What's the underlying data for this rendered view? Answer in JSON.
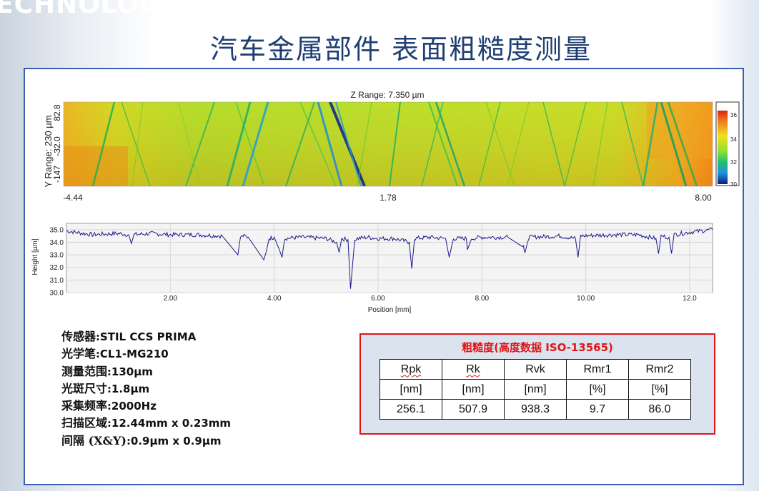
{
  "slide": {
    "brand_word": "ECHNOLOGY",
    "title": "汽车金属部件 表面粗糙度测量"
  },
  "surface_map": {
    "z_range_label": "Z Range: 7.350 µm",
    "y_axis_label": "Y Range: 230 µm",
    "y_ticks": [
      "82.8",
      "-32.0",
      "-147"
    ],
    "x_ticks": [
      "-4.44",
      "1.78",
      "8.00"
    ],
    "colorbar_ticks": [
      "36",
      "34",
      "32",
      "30"
    ],
    "colormap": [
      "#0b1f8f",
      "#1f8de0",
      "#20c060",
      "#a8e020",
      "#f0e020",
      "#f09020",
      "#e03010"
    ]
  },
  "profile_chart": {
    "ylabel": "Height [µm]",
    "xlabel": "Position [mm]",
    "line_color": "#1a1a8a"
  },
  "chart_data": {
    "type": "line",
    "title": "",
    "xlabel": "Position [mm]",
    "ylabel": "Height [µm]",
    "xlim": [
      0,
      12.44
    ],
    "ylim": [
      30.0,
      35.5
    ],
    "x_ticks": [
      "2.00",
      "4.00",
      "6.00",
      "8.00",
      "10.00",
      "12.0"
    ],
    "y_ticks": [
      "35.0",
      "34.0",
      "33.0",
      "32.0",
      "31.0",
      "30.0"
    ],
    "grid": true,
    "series": [
      {
        "x": [
          0.0,
          0.5,
          1.0,
          1.2,
          1.25,
          1.3,
          1.6,
          2.0,
          2.5,
          3.0,
          3.3,
          3.35,
          3.4,
          3.5,
          3.8,
          3.85,
          3.9,
          4.0,
          4.1,
          4.15,
          4.2,
          4.5,
          5.0,
          5.2,
          5.25,
          5.3,
          5.42,
          5.47,
          5.5,
          5.55,
          5.6,
          5.8,
          6.0,
          6.3,
          6.6,
          6.65,
          6.7,
          7.0,
          7.3,
          7.37,
          7.45,
          7.7,
          7.72,
          7.8,
          8.0,
          8.5,
          8.8,
          8.83,
          8.9,
          9.5,
          9.8,
          9.85,
          9.9,
          10.5,
          11.0,
          11.35,
          11.4,
          11.45,
          11.6,
          11.65,
          11.7,
          12.0,
          12.44
        ],
        "y": [
          34.9,
          34.6,
          34.7,
          34.6,
          33.9,
          34.6,
          34.7,
          34.6,
          34.6,
          34.5,
          33.0,
          34.4,
          34.5,
          34.4,
          32.6,
          33.3,
          34.3,
          34.4,
          33.4,
          32.8,
          34.3,
          34.4,
          34.3,
          34.0,
          33.2,
          34.3,
          34.2,
          30.3,
          31.8,
          34.2,
          34.3,
          34.4,
          34.3,
          34.3,
          34.0,
          31.9,
          34.3,
          34.4,
          34.3,
          32.8,
          34.3,
          34.3,
          33.4,
          34.3,
          34.4,
          34.4,
          33.6,
          33.2,
          34.4,
          34.5,
          34.3,
          32.8,
          34.5,
          34.6,
          34.6,
          34.3,
          33.1,
          34.5,
          34.4,
          33.1,
          34.6,
          34.8,
          35.0
        ]
      }
    ]
  },
  "specs": [
    {
      "label": "传感器:",
      "value": "STIL CCS PRIMA"
    },
    {
      "label": "光学笔:",
      "value": "CL1-MG210"
    },
    {
      "label": "测量范围:",
      "value": "130µm"
    },
    {
      "label": "光斑尺寸:",
      "value": "1.8µm"
    },
    {
      "label": "采集频率:",
      "value": "2000Hz"
    },
    {
      "label": "扫描区域:",
      "value": "12.44mm x 0.23mm"
    },
    {
      "label": "间隔 (X&Y):",
      "value": "0.9µm x 0.9µm"
    }
  ],
  "roughness": {
    "title": "粗糙度(高度数据 ISO-13565)",
    "headers": [
      "Rpk",
      "Rk",
      "Rvk",
      "Rmr1",
      "Rmr2"
    ],
    "units": [
      "[nm]",
      "[nm]",
      "[nm]",
      "[%]",
      "[%]"
    ],
    "values": [
      "256.1",
      "507.9",
      "938.3",
      "9.7",
      "86.0"
    ]
  }
}
